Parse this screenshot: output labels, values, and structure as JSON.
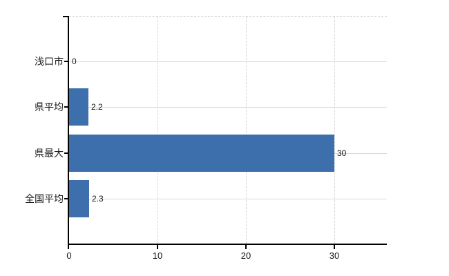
{
  "chart_data": {
    "type": "bar",
    "orientation": "horizontal",
    "title": "",
    "xlabel": "",
    "ylabel": "",
    "categories": [
      "浅口市",
      "県平均",
      "県最大",
      "全国平均"
    ],
    "values": [
      0,
      2.2,
      30,
      2.3
    ],
    "value_labels": [
      "0",
      "2.2",
      "30",
      "2.3"
    ],
    "x_ticks": [
      0,
      10,
      20,
      30
    ],
    "x_tick_labels": [
      "0",
      "10",
      "20",
      "30"
    ],
    "xlim": [
      0,
      35.94
    ],
    "grid": true,
    "legend": false,
    "bar_color": "#3d6fad",
    "h_grid_color": "#d3dbd3",
    "v_grid_color": "#d6d6d6",
    "axis_color": "#000000"
  }
}
